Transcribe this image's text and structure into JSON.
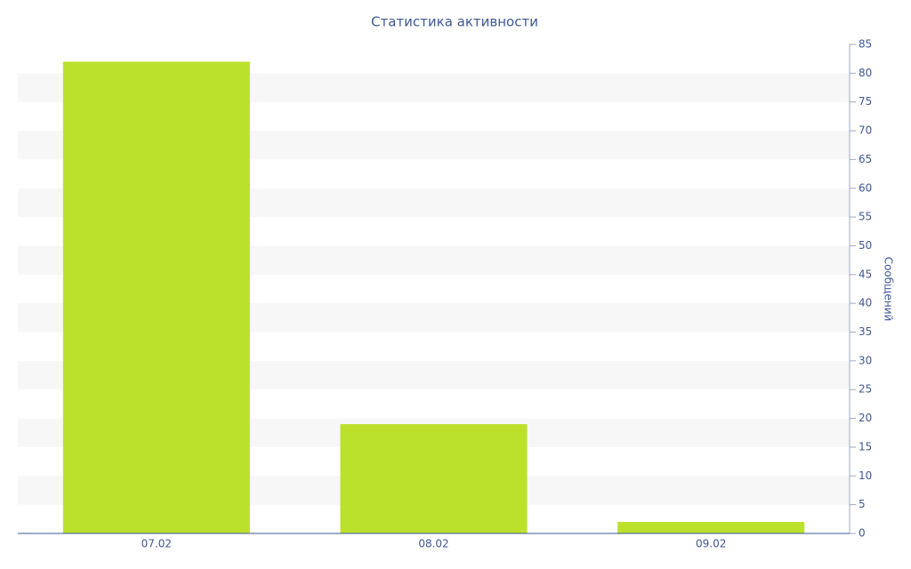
{
  "chart_data": {
    "type": "bar",
    "title": "Статистика активности",
    "y_label": "Сообщений",
    "categories": [
      "07.02",
      "08.02",
      "09.02"
    ],
    "values": [
      82,
      19,
      2
    ],
    "color": "#bce12d",
    "ylim": [
      0,
      85
    ],
    "yticks": [
      0,
      5,
      10,
      15,
      20,
      25,
      30,
      35,
      40,
      45,
      50,
      55,
      60,
      65,
      70,
      75,
      80,
      85
    ],
    "y_axis_side": "right",
    "grid": "bands"
  }
}
